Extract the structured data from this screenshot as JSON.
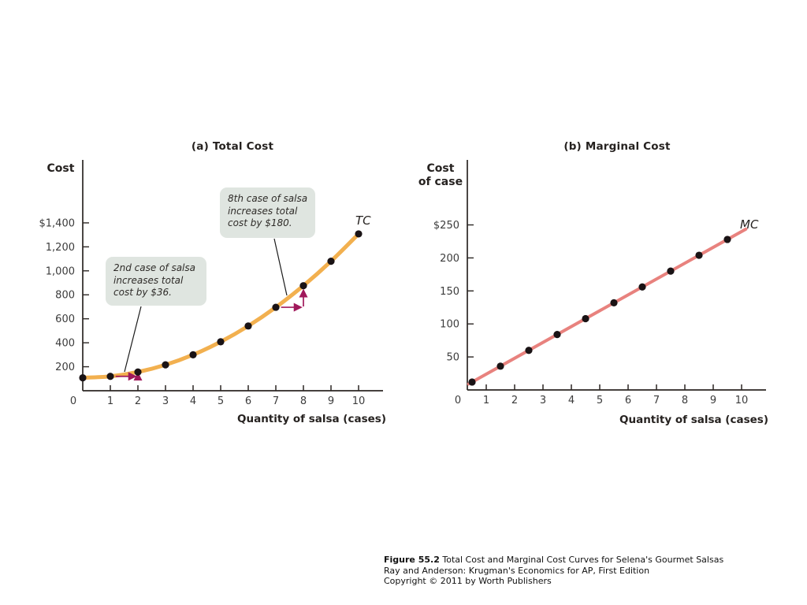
{
  "figure": {
    "caption": {
      "label": "Figure 55.2",
      "title": "Total Cost and Marginal Cost Curves for Selena's Gourmet Salsas",
      "source": "Ray and Anderson: Krugman's Economics for AP, First Edition",
      "copyright": "Copyright © 2011 by Worth Publishers"
    }
  },
  "chart_data": [
    {
      "id": "total-cost",
      "type": "line",
      "panel_title": "(a) Total Cost",
      "ylabel": "Cost",
      "xlabel": "Quantity of salsa (cases)",
      "curve_label": "TC",
      "x": [
        0,
        1,
        2,
        3,
        4,
        5,
        6,
        7,
        8,
        9,
        10
      ],
      "y": [
        108,
        120,
        156,
        216,
        300,
        408,
        540,
        696,
        876,
        1080,
        1308
      ],
      "xticks": [
        0,
        1,
        2,
        3,
        4,
        5,
        6,
        7,
        8,
        9,
        10
      ],
      "ytick_values": [
        200,
        400,
        600,
        800,
        1000,
        1200,
        1400
      ],
      "ytick_labels": [
        "200",
        "400",
        "600",
        "800",
        "1,000",
        "1,200",
        "$1,400"
      ],
      "xlim": [
        0,
        10.9
      ],
      "ylim": [
        0,
        1925
      ],
      "grid": false,
      "line_color": "#F2B04F",
      "point_color": "#1A1315",
      "annotation_arrow_color": "#A0195B",
      "annotations": [
        {
          "text": "2nd case of salsa increases total cost by $36."
        },
        {
          "text": "8th case of salsa increases total cost by $180."
        }
      ],
      "increment_arrows": [
        {
          "from_q": 1,
          "base_v": 120,
          "to_q": 2,
          "to_v": 156,
          "increase": 36
        },
        {
          "from_q": 7,
          "base_v": 696,
          "to_q": 8,
          "to_v": 876,
          "increase": 180
        }
      ]
    },
    {
      "id": "marginal-cost",
      "type": "line",
      "panel_title": "(b) Marginal Cost",
      "ylabel": "Cost\nof case",
      "xlabel": "Quantity of salsa (cases)",
      "curve_label": "MC",
      "x": [
        0.5,
        1.5,
        2.5,
        3.5,
        4.5,
        5.5,
        6.5,
        7.5,
        8.5,
        9.5
      ],
      "y": [
        12,
        36,
        60,
        84,
        108,
        132,
        156,
        180,
        204,
        228
      ],
      "xticks": [
        0,
        1,
        2,
        3,
        4,
        5,
        6,
        7,
        8,
        9,
        10
      ],
      "ytick_values": [
        50,
        100,
        150,
        200,
        250
      ],
      "ytick_labels": [
        "50",
        "100",
        "150",
        "200",
        "$250"
      ],
      "xlim": [
        0,
        10.5
      ],
      "ylim": [
        0,
        348
      ],
      "grid": false,
      "line_color": "#E8827E",
      "point_color": "#1A1315"
    }
  ]
}
